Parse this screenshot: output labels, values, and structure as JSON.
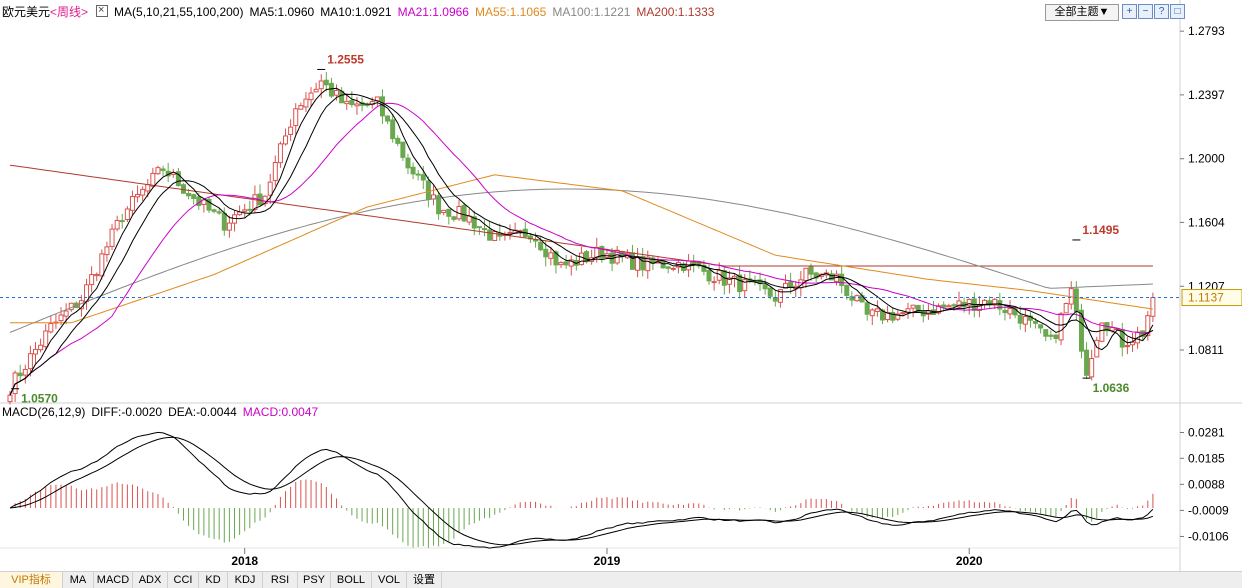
{
  "header": {
    "symbol": "欧元美元",
    "period": "<周线>",
    "ma_params": "MA(5,10,21,55,100,200)",
    "ma5": "MA5:1.0960",
    "ma10": "MA10:1.0921",
    "ma21": "MA21:1.0966",
    "ma55": "MA55:1.1065",
    "ma100": "MA100:1.1221",
    "ma200": "MA200:1.1333",
    "theme_button": "全部主题▼"
  },
  "toolbar": {
    "zoom_in": "+",
    "zoom_out": "−",
    "help": "?",
    "restore": "□"
  },
  "macd_header": {
    "params": "MACD(26,12,9)",
    "diff": "DIFF:-0.0020",
    "dea": "DEA:-0.0044",
    "macd": "MACD:0.0047"
  },
  "tabs": [
    "VIP指标",
    "MA",
    "MACD",
    "ADX",
    "CCI",
    "KD",
    "KDJ",
    "RSI",
    "PSY",
    "BOLL",
    "VOL",
    "设置"
  ],
  "active_tab": "VIP指标",
  "colors": {
    "up": "#d9534f",
    "down": "#6aa84f",
    "ma5": "#000000",
    "ma10": "#000000",
    "ma21": "#cc00cc",
    "ma55": "#e08a1e",
    "ma100": "#888888",
    "ma200": "#b03a2e",
    "current": "#1e6fd9"
  },
  "chart_data": [
    {
      "type": "candlestick",
      "title": "欧元美元 <周线>",
      "ylim": [
        1.05,
        1.285
      ],
      "y_ticks": [
        "1.2793",
        "1.2397",
        "1.2000",
        "1.1604",
        "1.1207",
        "1.0811"
      ],
      "x_ticks": [
        "2018",
        "2019",
        "2020"
      ],
      "x_tick_index": [
        46,
        117,
        188
      ],
      "n_bars": 225,
      "current_price": 1.1137,
      "current_price_label": "1.1137",
      "annotations": [
        {
          "text": "1.2555",
          "value": 1.2555,
          "index": 61,
          "color": "#c0392b"
        },
        {
          "text": "1.0570",
          "value": 1.057,
          "index": 1,
          "color": "#4a8a2a"
        },
        {
          "text": "1.1495",
          "value": 1.1495,
          "index": 209,
          "color": "#c0392b"
        },
        {
          "text": "1.0636",
          "value": 1.0636,
          "index": 211,
          "color": "#4a8a2a"
        }
      ],
      "anchors": [
        [
          0,
          1.058
        ],
        [
          8,
          1.095
        ],
        [
          14,
          1.113
        ],
        [
          22,
          1.165
        ],
        [
          30,
          1.194
        ],
        [
          38,
          1.17
        ],
        [
          42,
          1.16
        ],
        [
          50,
          1.178
        ],
        [
          56,
          1.232
        ],
        [
          61,
          1.248
        ],
        [
          66,
          1.232
        ],
        [
          72,
          1.234
        ],
        [
          78,
          1.196
        ],
        [
          84,
          1.17
        ],
        [
          90,
          1.163
        ],
        [
          96,
          1.148
        ],
        [
          102,
          1.155
        ],
        [
          108,
          1.133
        ],
        [
          116,
          1.142
        ],
        [
          124,
          1.134
        ],
        [
          132,
          1.135
        ],
        [
          140,
          1.125
        ],
        [
          146,
          1.119
        ],
        [
          150,
          1.114
        ],
        [
          156,
          1.128
        ],
        [
          162,
          1.126
        ],
        [
          168,
          1.102
        ],
        [
          176,
          1.104
        ],
        [
          184,
          1.108
        ],
        [
          192,
          1.112
        ],
        [
          198,
          1.102
        ],
        [
          204,
          1.085
        ],
        [
          208,
          1.117
        ],
        [
          211,
          1.069
        ],
        [
          214,
          1.102
        ],
        [
          218,
          1.086
        ],
        [
          222,
          1.092
        ],
        [
          224,
          1.1137
        ]
      ],
      "ma_lines": [
        {
          "name": "MA5",
          "value": 1.096,
          "color": "#000000"
        },
        {
          "name": "MA10",
          "value": 1.0921,
          "color": "#000000"
        },
        {
          "name": "MA21",
          "value": 1.0966,
          "color": "#cc00cc"
        },
        {
          "name": "MA55",
          "value": 1.1065,
          "color": "#e08a1e"
        },
        {
          "name": "MA100",
          "value": 1.1221,
          "color": "#888888"
        },
        {
          "name": "MA200",
          "value": 1.1333,
          "color": "#b03a2e"
        }
      ]
    },
    {
      "type": "macd",
      "title": "MACD(26,12,9)",
      "ylim": [
        -0.0175,
        0.0335
      ],
      "y_ticks": [
        "0.0281",
        "0.0185",
        "0.0088",
        "-0.0009",
        "-0.0106"
      ],
      "y_tick_values": [
        0.0281,
        0.0185,
        0.0088,
        -0.0009,
        -0.0106
      ],
      "diff": -0.002,
      "dea": -0.0044,
      "macd": 0.0047
    }
  ]
}
